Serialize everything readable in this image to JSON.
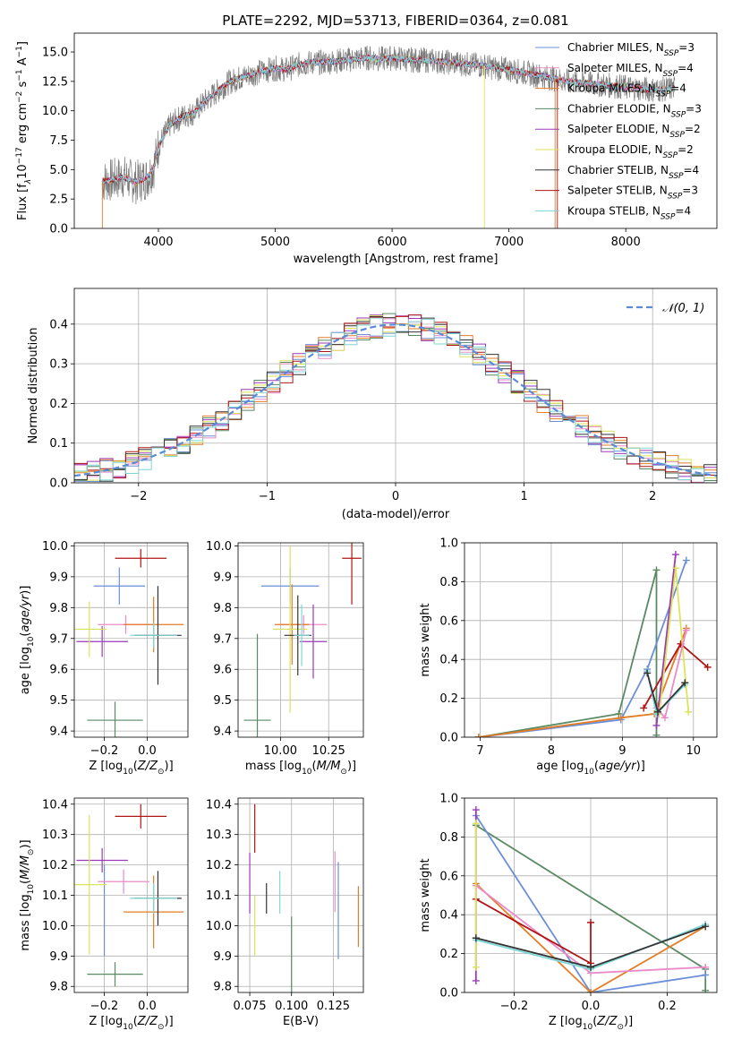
{
  "series_legend": [
    {
      "name": "Chabrier MILES, N",
      "sub": "SSP",
      "suffix": "=3",
      "color": "#6a8fd8"
    },
    {
      "name": "Salpeter MILES, N",
      "sub": "SSP",
      "suffix": "=4",
      "color": "#e98bc8"
    },
    {
      "name": "Kroupa MILES, N",
      "sub": "SSP",
      "suffix": "=4",
      "color": "#e37d26"
    },
    {
      "name": "Chabrier ELODIE, N",
      "sub": "SSP",
      "suffix": "=3",
      "color": "#5a8a64"
    },
    {
      "name": "Salpeter ELODIE, N",
      "sub": "SSP",
      "suffix": "=2",
      "color": "#9a3ab8"
    },
    {
      "name": "Kroupa ELODIE, N",
      "sub": "SSP",
      "suffix": "=2",
      "color": "#dbe35a"
    },
    {
      "name": "Chabrier STELIB, N",
      "sub": "SSP",
      "suffix": "=4",
      "color": "#333333"
    },
    {
      "name": "Salpeter STELIB, N",
      "sub": "SSP",
      "suffix": "=3",
      "color": "#b01515"
    },
    {
      "name": "Kroupa STELIB, N",
      "sub": "SSP",
      "suffix": "=4",
      "color": "#7fd6d6"
    }
  ],
  "chart_data": [
    {
      "id": "spectrum",
      "type": "line",
      "title": "PLATE=2292, MJD=53713, FIBERID=0364, z=0.081",
      "xlabel": "wavelength [Angstrom, rest frame]",
      "ylabel_main": "Flux [f",
      "ylabel_sub": "λ",
      "ylabel_rest": "10",
      "ylabel_exp1": "−17",
      "ylabel_mid": " erg cm",
      "ylabel_exp2": "−2",
      "ylabel_s": " s",
      "ylabel_exp3": "−1",
      "ylabel_A": " A",
      "ylabel_exp4": "−1",
      "ylabel_end": "]",
      "xlim": [
        3280,
        8780
      ],
      "ylim": [
        0,
        16.6
      ],
      "xticks": [
        4000,
        5000,
        6000,
        7000,
        8000
      ],
      "yticks": [
        0.0,
        2.5,
        5.0,
        7.5,
        10.0,
        12.5,
        15.0
      ],
      "ytick_labels": [
        "0.0",
        "2.5",
        "5.0",
        "7.5",
        "10.0",
        "12.5",
        "15.0"
      ],
      "continuum": [
        [
          3520,
          4.0
        ],
        [
          3600,
          4.1
        ],
        [
          3700,
          4.4
        ],
        [
          3800,
          3.9
        ],
        [
          3900,
          4.3
        ],
        [
          3960,
          5.2
        ],
        [
          4000,
          7.0
        ],
        [
          4100,
          8.8
        ],
        [
          4200,
          9.5
        ],
        [
          4300,
          9.8
        ],
        [
          4400,
          10.8
        ],
        [
          4500,
          11.6
        ],
        [
          4600,
          12.4
        ],
        [
          4700,
          12.8
        ],
        [
          4800,
          13.1
        ],
        [
          4900,
          13.4
        ],
        [
          5000,
          13.6
        ],
        [
          5100,
          13.5
        ],
        [
          5200,
          13.9
        ],
        [
          5300,
          14.1
        ],
        [
          5400,
          14.1
        ],
        [
          5500,
          14.2
        ],
        [
          5600,
          14.3
        ],
        [
          5700,
          14.4
        ],
        [
          5800,
          14.5
        ],
        [
          5900,
          14.4
        ],
        [
          6000,
          14.5
        ],
        [
          6100,
          14.4
        ],
        [
          6200,
          14.3
        ],
        [
          6300,
          14.3
        ],
        [
          6400,
          14.2
        ],
        [
          6500,
          14.1
        ],
        [
          6600,
          14.0
        ],
        [
          6700,
          13.9
        ],
        [
          6800,
          13.8
        ],
        [
          6900,
          13.6
        ],
        [
          7000,
          13.5
        ],
        [
          7100,
          13.3
        ],
        [
          7200,
          13.1
        ],
        [
          7300,
          12.9
        ],
        [
          7400,
          12.7
        ],
        [
          7500,
          12.5
        ],
        [
          7600,
          12.4
        ],
        [
          7700,
          12.3
        ],
        [
          7800,
          12.2
        ],
        [
          7900,
          12.1
        ],
        [
          8000,
          12.0
        ],
        [
          8100,
          11.9
        ],
        [
          8200,
          11.8
        ],
        [
          8300,
          11.8
        ],
        [
          8400,
          11.9
        ]
      ]
    },
    {
      "id": "residuals",
      "type": "histogram",
      "xlabel": "(data-model)/error",
      "ylabel": "Normed distribution",
      "xlim": [
        -2.5,
        2.5
      ],
      "ylim": [
        0,
        0.49
      ],
      "xticks": [
        -2,
        -1,
        0,
        1,
        2
      ],
      "xtick_labels": [
        "−2",
        "−1",
        "0",
        "1",
        "2"
      ],
      "yticks": [
        0.0,
        0.1,
        0.2,
        0.3,
        0.4
      ],
      "ytick_labels": [
        "0.0",
        "0.1",
        "0.2",
        "0.3",
        "0.4"
      ],
      "legend": "𝒩(0, 1)",
      "bin_width": 0.1,
      "grid": true
    },
    {
      "id": "age-vs-z",
      "type": "errorbar",
      "xlabel_pre": "Z [log",
      "xlabel_sub": "10",
      "xlabel_post": "(Z/Z",
      "xlabel_sun": "⊙",
      "xlabel_end": ")]",
      "ylabel_pre": "age  [log",
      "ylabel_sub": "10",
      "ylabel_post": "(age/yr)]",
      "xlim": [
        -0.34,
        0.19
      ],
      "ylim": [
        9.38,
        10.01
      ],
      "xticks": [
        -0.2,
        0.0
      ],
      "xtick_labels": [
        "−0.2",
        "0.0"
      ],
      "yticks": [
        9.4,
        9.5,
        9.6,
        9.7,
        9.8,
        9.9,
        10.0
      ],
      "ytick_labels": [
        "9.4",
        "9.5",
        "9.6",
        "9.7",
        "9.8",
        "9.9",
        "10.0"
      ],
      "points": [
        {
          "x": -0.13,
          "xerr": 0.12,
          "y": 9.87,
          "yerr": 0.06,
          "c": 0
        },
        {
          "x": -0.1,
          "xerr": 0.13,
          "y": 9.745,
          "yerr": 0.03,
          "c": 1
        },
        {
          "x": 0.03,
          "xerr": 0.14,
          "y": 9.745,
          "yerr": 0.09,
          "c": 2
        },
        {
          "x": -0.15,
          "xerr": 0.13,
          "y": 9.435,
          "yerr": 0.06,
          "c": 3
        },
        {
          "x": -0.21,
          "xerr": 0.12,
          "y": 9.69,
          "yerr": 0.05,
          "c": 4
        },
        {
          "x": -0.27,
          "xerr": 0.08,
          "y": 9.73,
          "yerr": 0.09,
          "c": 5
        },
        {
          "x": 0.05,
          "xerr": 0.11,
          "y": 9.71,
          "yerr": 0.16,
          "c": 6
        },
        {
          "x": -0.03,
          "xerr": 0.12,
          "y": 9.96,
          "yerr": 0.03,
          "c": 7
        },
        {
          "x": 0.03,
          "xerr": 0.11,
          "y": 9.71,
          "yerr": 0.04,
          "c": 8
        }
      ]
    },
    {
      "id": "age-vs-mass",
      "type": "errorbar",
      "xlabel_pre": "mass [log",
      "xlabel_sub": "10",
      "xlabel_post": "(M/M",
      "xlabel_sun": "⊙",
      "xlabel_end": ")]",
      "xlim": [
        9.78,
        10.43
      ],
      "ylim": [
        9.38,
        10.01
      ],
      "xticks": [
        10.0,
        10.25
      ],
      "xtick_labels": [
        "10.00",
        "10.25"
      ],
      "yticks": [
        9.4,
        9.5,
        9.6,
        9.7,
        9.8,
        9.9,
        10.0
      ],
      "ytick_labels": [
        "9.4",
        "9.5",
        "9.6",
        "9.7",
        "9.8",
        "9.9",
        "10.0"
      ],
      "points": [
        {
          "x": 10.05,
          "xerr": 0.15,
          "y": 9.87,
          "yerr": 0.06,
          "c": 0
        },
        {
          "x": 10.12,
          "xerr": 0.12,
          "y": 9.745,
          "yerr": 0.03,
          "c": 1
        },
        {
          "x": 10.06,
          "xerr": 0.09,
          "y": 9.745,
          "yerr": 0.13,
          "c": 2
        },
        {
          "x": 9.88,
          "xerr": 0.07,
          "y": 9.435,
          "yerr": 0.28,
          "c": 3
        },
        {
          "x": 10.17,
          "xerr": 0.07,
          "y": 9.69,
          "yerr": 0.12,
          "c": 4
        },
        {
          "x": 10.05,
          "xerr": 0.09,
          "y": 9.73,
          "yerr": 0.27,
          "c": 5
        },
        {
          "x": 10.09,
          "xerr": 0.07,
          "y": 9.71,
          "yerr": 0.13,
          "c": 6
        },
        {
          "x": 10.37,
          "xerr": 0.05,
          "y": 9.96,
          "yerr": 0.15,
          "c": 7
        },
        {
          "x": 10.11,
          "xerr": 0.04,
          "y": 9.71,
          "yerr": 0.1,
          "c": 8
        }
      ]
    },
    {
      "id": "weight-vs-age",
      "type": "line",
      "xlabel_pre": "age  [log",
      "xlabel_sub": "10",
      "xlabel_post": "(age/yr)]",
      "ylabel": "mass weight",
      "xlim": [
        6.78,
        10.33
      ],
      "ylim": [
        0,
        1.0
      ],
      "xticks": [
        7,
        8,
        9,
        10
      ],
      "xtick_labels": [
        "7",
        "8",
        "9",
        "10"
      ],
      "yticks": [
        0.0,
        0.2,
        0.4,
        0.6,
        0.8,
        1.0
      ],
      "ytick_labels": [
        "0.0",
        "0.2",
        "0.4",
        "0.6",
        "0.8",
        "1.0"
      ],
      "series": [
        {
          "c": 3,
          "points": [
            [
              6.98,
              0.0
            ],
            [
              8.95,
              0.12
            ],
            [
              9.48,
              0.86
            ],
            [
              9.48,
              0.01
            ]
          ]
        },
        {
          "c": 0,
          "points": [
            [
              6.98,
              0.0
            ],
            [
              8.98,
              0.09
            ],
            [
              9.35,
              0.35
            ],
            [
              9.9,
              0.91
            ]
          ]
        },
        {
          "c": 2,
          "points": [
            [
              6.98,
              0.0
            ],
            [
              8.98,
              0.1
            ],
            [
              9.45,
              0.12
            ],
            [
              9.9,
              0.56
            ]
          ]
        },
        {
          "c": 7,
          "points": [
            [
              9.3,
              0.15
            ],
            [
              9.82,
              0.48
            ],
            [
              10.2,
              0.36
            ]
          ]
        },
        {
          "c": 4,
          "points": [
            [
              9.48,
              0.06
            ],
            [
              9.75,
              0.94
            ]
          ]
        },
        {
          "c": 5,
          "points": [
            [
              9.52,
              0.12
            ],
            [
              9.75,
              0.87
            ],
            [
              9.93,
              0.13
            ]
          ]
        },
        {
          "c": 1,
          "points": [
            [
              9.48,
              0.15
            ],
            [
              9.6,
              0.1
            ],
            [
              9.9,
              0.55
            ]
          ]
        },
        {
          "c": 8,
          "points": [
            [
              9.35,
              0.34
            ],
            [
              9.48,
              0.12
            ],
            [
              9.88,
              0.27
            ]
          ]
        },
        {
          "c": 6,
          "points": [
            [
              9.35,
              0.33
            ],
            [
              9.5,
              0.13
            ],
            [
              9.88,
              0.28
            ]
          ]
        }
      ]
    },
    {
      "id": "mass-vs-z",
      "type": "errorbar",
      "xlabel_pre": "Z [log",
      "xlabel_sub": "10",
      "xlabel_post": "(Z/Z",
      "xlabel_sun": "⊙",
      "xlabel_end": ")]",
      "ylabel_pre": "mass [log",
      "ylabel_sub": "10",
      "ylabel_post": "(M/M",
      "ylabel_sun": "⊙",
      "ylabel_end": ")]",
      "xlim": [
        -0.34,
        0.19
      ],
      "ylim": [
        9.78,
        10.42
      ],
      "xticks": [
        -0.2,
        0.0
      ],
      "xtick_labels": [
        "−0.2",
        "0.0"
      ],
      "yticks": [
        9.8,
        9.9,
        10.0,
        10.1,
        10.2,
        10.3,
        10.4
      ],
      "ytick_labels": [
        "9.8",
        "9.9",
        "10.0",
        "10.1",
        "10.2",
        "10.3",
        "10.4"
      ],
      "points": [
        {
          "x": -0.2,
          "xerr": 0.0,
          "y": 10.05,
          "yerr": 0.15,
          "c": 0
        },
        {
          "x": -0.11,
          "xerr": 0.12,
          "y": 10.145,
          "yerr": 0.04,
          "c": 1
        },
        {
          "x": 0.03,
          "xerr": 0.14,
          "y": 10.045,
          "yerr": 0.12,
          "c": 2
        },
        {
          "x": -0.15,
          "xerr": 0.13,
          "y": 9.84,
          "yerr": 0.04,
          "c": 3
        },
        {
          "x": -0.21,
          "xerr": 0.12,
          "y": 10.215,
          "yerr": 0.04,
          "c": 4
        },
        {
          "x": -0.27,
          "xerr": 0.08,
          "y": 10.135,
          "yerr": 0.23,
          "c": 5
        },
        {
          "x": 0.05,
          "xerr": 0.11,
          "y": 10.09,
          "yerr": 0.09,
          "c": 6
        },
        {
          "x": -0.03,
          "xerr": 0.12,
          "y": 10.36,
          "yerr": 0.04,
          "c": 7
        },
        {
          "x": 0.03,
          "xerr": 0.11,
          "y": 10.09,
          "yerr": 0.05,
          "c": 8
        }
      ]
    },
    {
      "id": "mass-vs-ebv",
      "type": "errorbar",
      "xlabel": "E(B-V)",
      "xlim": [
        0.068,
        0.143
      ],
      "ylim": [
        9.78,
        10.42
      ],
      "xticks": [
        0.075,
        0.1,
        0.125
      ],
      "xtick_labels": [
        "0.075",
        "0.100",
        "0.125"
      ],
      "yticks": [
        9.8,
        9.9,
        10.0,
        10.1,
        10.2,
        10.3,
        10.4
      ],
      "ytick_labels": [
        "9.8",
        "9.9",
        "10.0",
        "10.1",
        "10.2",
        "10.3",
        "10.4"
      ],
      "points": [
        {
          "x": 0.128,
          "y": 10.05,
          "yerr": 0.16,
          "c": 0
        },
        {
          "x": 0.126,
          "y": 10.145,
          "yerr": 0.1,
          "c": 1
        },
        {
          "x": 0.14,
          "y": 10.03,
          "yerr": 0.1,
          "c": 2
        },
        {
          "x": 0.1,
          "y": 9.9,
          "yerr": 0.13,
          "c": 3
        },
        {
          "x": 0.075,
          "y": 10.14,
          "yerr": 0.1,
          "c": 4
        },
        {
          "x": 0.078,
          "y": 10.0,
          "yerr": 0.1,
          "c": 5
        },
        {
          "x": 0.085,
          "y": 10.09,
          "yerr": 0.05,
          "c": 6
        },
        {
          "x": 0.078,
          "y": 10.32,
          "yerr": 0.08,
          "c": 7
        },
        {
          "x": 0.093,
          "y": 10.11,
          "yerr": 0.07,
          "c": 8
        }
      ]
    },
    {
      "id": "weight-vs-z",
      "type": "line",
      "xlabel_pre": "Z [log",
      "xlabel_sub": "10",
      "xlabel_post": "(Z/Z",
      "xlabel_sun": "⊙",
      "xlabel_end": ")]",
      "ylabel": "mass weight",
      "xlim": [
        -0.33,
        0.33
      ],
      "ylim": [
        0,
        1.0
      ],
      "xticks": [
        -0.2,
        0.0,
        0.2
      ],
      "xtick_labels": [
        "−0.2",
        "0.0",
        "0.2"
      ],
      "yticks": [
        0.0,
        0.2,
        0.4,
        0.6,
        0.8,
        1.0
      ],
      "ytick_labels": [
        "0.0",
        "0.2",
        "0.4",
        "0.6",
        "0.8",
        "1.0"
      ],
      "series": [
        {
          "c": 3,
          "points": [
            [
              -0.3,
              0.86
            ],
            [
              0.3,
              0.12
            ],
            [
              0.3,
              0.01
            ]
          ]
        },
        {
          "c": 0,
          "points": [
            [
              -0.3,
              0.91
            ],
            [
              0.0,
              0.0
            ],
            [
              0.3,
              0.09
            ]
          ]
        },
        {
          "c": 2,
          "points": [
            [
              -0.3,
              0.56
            ],
            [
              0.0,
              0.0
            ],
            [
              0.3,
              0.34
            ]
          ]
        },
        {
          "c": 1,
          "points": [
            [
              -0.3,
              0.55
            ],
            [
              0.0,
              0.1
            ],
            [
              0.3,
              0.13
            ]
          ]
        },
        {
          "c": 7,
          "points": [
            [
              -0.3,
              0.48
            ],
            [
              0.0,
              0.15
            ],
            [
              0.0,
              0.36
            ]
          ]
        },
        {
          "c": 4,
          "points": [
            [
              -0.3,
              0.94
            ],
            [
              -0.3,
              0.06
            ]
          ]
        },
        {
          "c": 5,
          "points": [
            [
              -0.3,
              0.87
            ],
            [
              -0.3,
              0.13
            ]
          ]
        },
        {
          "c": 8,
          "points": [
            [
              -0.3,
              0.27
            ],
            [
              0.0,
              0.12
            ],
            [
              0.3,
              0.35
            ]
          ]
        },
        {
          "c": 6,
          "points": [
            [
              -0.3,
              0.28
            ],
            [
              0.0,
              0.13
            ],
            [
              0.3,
              0.34
            ]
          ]
        }
      ]
    }
  ]
}
